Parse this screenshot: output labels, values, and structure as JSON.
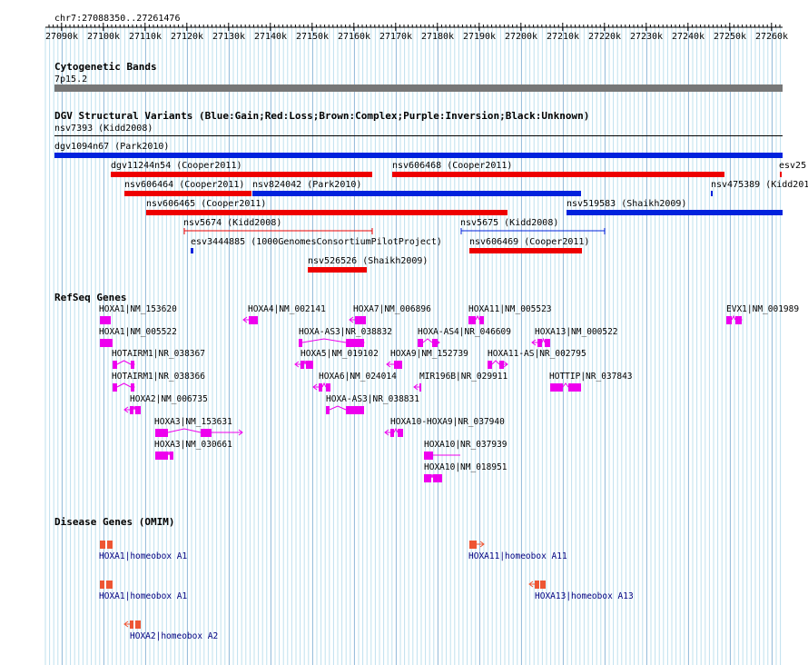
{
  "ruler": {
    "range_label": "chr7:27088350..27261476",
    "ticks": [
      "27090k",
      "27100k",
      "27110k",
      "27120k",
      "27130k",
      "27140k",
      "27150k",
      "27160k",
      "27170k",
      "27180k",
      "27190k",
      "27200k",
      "27210k",
      "27220k",
      "27230k",
      "27240k",
      "27250k",
      "27260k"
    ]
  },
  "cytoband": {
    "title": "Cytogenetic Bands",
    "band": "7p15.2"
  },
  "dgv": {
    "title": "DGV Structural Variants (Blue:Gain;Red:Loss;Brown:Complex;Purple:Inversion;Black:Unknown)",
    "colors": {
      "gain": "#0022dd",
      "loss": "#ee0000"
    },
    "items": [
      {
        "label": "nsv7393 (Kidd2008)",
        "type": "line"
      },
      {
        "label": "dgv1094n67 (Park2010)",
        "type": "gain"
      },
      {
        "label": "dgv11244n54 (Cooper2011)",
        "type": "loss"
      },
      {
        "label": "nsv606468 (Cooper2011)",
        "type": "loss"
      },
      {
        "label": "esv25",
        "type": "loss"
      },
      {
        "label": "nsv606464 (Cooper2011)",
        "type": "loss"
      },
      {
        "label": "nsv824042 (Park2010)",
        "type": "gain"
      },
      {
        "label": "nsv475389 (Kidd201",
        "type": "gain"
      },
      {
        "label": "nsv606465 (Cooper2011)",
        "type": "loss"
      },
      {
        "label": "nsv519583 (Shaikh2009)",
        "type": "gain"
      },
      {
        "label": "nsv5674 (Kidd2008)",
        "type": "loss"
      },
      {
        "label": "nsv5675 (Kidd2008)",
        "type": "gain"
      },
      {
        "label": "esv3444885 (1000GenomesConsortiumPilotProject)",
        "type": "gain"
      },
      {
        "label": "nsv606469 (Cooper2011)",
        "type": "loss"
      },
      {
        "label": "nsv526526 (Shaikh2009)",
        "type": "loss"
      }
    ]
  },
  "refseq": {
    "title": "RefSeq Genes",
    "color": "#ee00ee",
    "genes": [
      "HOXA1|NM_153620",
      "HOXA4|NM_002141",
      "HOXA7|NM_006896",
      "HOXA11|NM_005523",
      "EVX1|NM_001989",
      "HOXA1|NM_005522",
      "HOXA-AS3|NR_038832",
      "HOXA-AS4|NR_046609",
      "HOXA13|NM_000522",
      "HOTAIRM1|NR_038367",
      "HOXA5|NM_019102",
      "HOXA9|NM_152739",
      "HOXA11-AS|NR_002795",
      "HOTAIRM1|NR_038366",
      "HOXA6|NM_024014",
      "MIR196B|NR_029911",
      "HOTTIP|NR_037843",
      "HOXA2|NM_006735",
      "HOXA-AS3|NR_038831",
      "HOXA3|NM_153631",
      "HOXA10-HOXA9|NR_037940",
      "HOXA3|NM_030661",
      "HOXA10|NR_037939",
      "HOXA10|NM_018951"
    ]
  },
  "omim": {
    "title": "Disease Genes (OMIM)",
    "color": "#ee5533",
    "genes": [
      "HOXA1|homeobox A1",
      "HOXA11|homeobox A11",
      "HOXA1|homeobox A1",
      "HOXA13|homeobox A13",
      "HOXA2|homeobox A2"
    ]
  }
}
